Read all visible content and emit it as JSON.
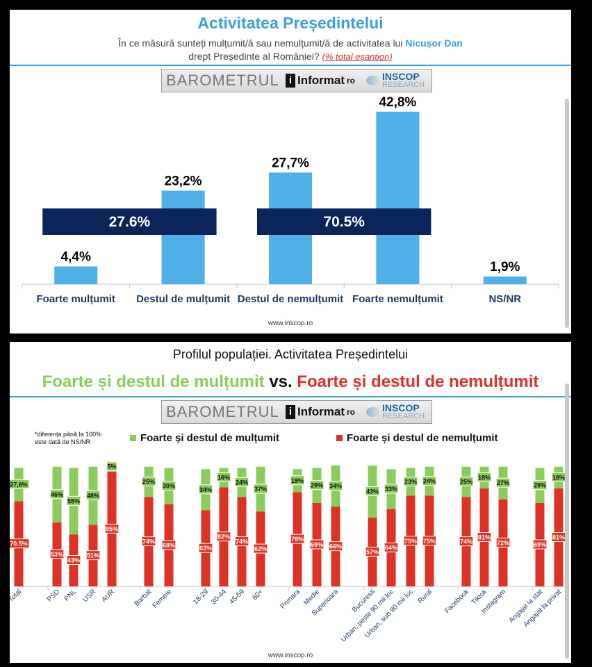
{
  "panel1": {
    "title": "Activitatea Președintelui",
    "subtitle_pre": "În ce măsură sunteți mulțumit/ă sau nemulțumit/ă de activitatea lui",
    "subtitle_name": "Nicușor Dan",
    "subtitle_post": "drept Președinte al României?",
    "subtitle_note": "(% total eșantion)",
    "website": "www.inscop.ro"
  },
  "logo": {
    "barometru": "BAROMETRUL",
    "informat": "Informat",
    "informat_tld": "ro",
    "inscop": "INSCOP",
    "research": "RESEARCH"
  },
  "panel2": {
    "title": "Profilul populației. Activitatea Președintelui",
    "green_title": "Foarte și destul de mulțumit",
    "vs": "vs.",
    "red_title": "Foarte și destul de nemulțumit",
    "note_line1": "*diferența până la 100%",
    "note_line2": "este dată de NS/NR",
    "legend_green": "Foarte și destul de mulțumit",
    "legend_red": "Foarte și destul de nemulțumit",
    "website": "www.inscop.ro"
  },
  "colors": {
    "accent": "#3aa0e2",
    "box": "#0b2459",
    "green": "#8ccc5c",
    "red": "#dc3326"
  },
  "chart_data": [
    {
      "type": "bar",
      "categories": [
        "Foarte mulțumit",
        "Destul de mulțumit",
        "Destul de nemulțumit",
        "Foarte nemulțumit",
        "NS/NR"
      ],
      "values": [
        4.4,
        23.2,
        27.7,
        42.8,
        1.9
      ],
      "value_labels": [
        "4,4%",
        "23,2%",
        "27,7%",
        "42,8%",
        "1,9%"
      ],
      "summary_boxes": [
        "27.6%",
        "70.5%"
      ]
    },
    {
      "type": "bar",
      "stacked": true,
      "categories": [
        "Total",
        "PSD",
        "PNL",
        "USR",
        "AUR",
        "Barbat",
        "Femeie",
        "18-29",
        "30-44",
        "45-59",
        "60+",
        "Primara",
        "Medie",
        "Superioara",
        "Bucuresti",
        "Urban, peste 90 mii loc",
        "Urban, sub 90 mii loc",
        "Rural",
        "Facebook",
        "Tiktok",
        "Instagram",
        "Angajat la stat",
        "Angajat la privat"
      ],
      "series": [
        {
          "name": "Foarte și destul de nemulțumit",
          "color": "#dc3326",
          "values": [
            70.5,
            53,
            43,
            51,
            95,
            74,
            68,
            63,
            82,
            74,
            62,
            78,
            69,
            66,
            57,
            64,
            75,
            75,
            74,
            81,
            72,
            69,
            81
          ],
          "labels": [
            "70.5%",
            "53%",
            "43%",
            "51%",
            "95%",
            "74%",
            "68%",
            "63%",
            "82%",
            "74%",
            "62%",
            "78%",
            "69%",
            "66%",
            "57%",
            "64%",
            "75%",
            "75%",
            "74%",
            "81%",
            "72%",
            "69%",
            "81%"
          ]
        },
        {
          "name": "Foarte și destul de mulțumit",
          "color": "#8ccc5c",
          "values": [
            27.6,
            46,
            55,
            48,
            5,
            25,
            30,
            34,
            16,
            24,
            37,
            19,
            29,
            34,
            43,
            33,
            23,
            24,
            25,
            18,
            27,
            29,
            18
          ],
          "labels": [
            "27,6%",
            "46%",
            "55%",
            "48%",
            "5%",
            "25%",
            "30%",
            "34%",
            "16%",
            "24%",
            "37%",
            "19%",
            "29%",
            "34%",
            "43%",
            "33%",
            "23%",
            "24%",
            "25%",
            "18%",
            "27%",
            "29%",
            "18%"
          ]
        }
      ]
    }
  ]
}
